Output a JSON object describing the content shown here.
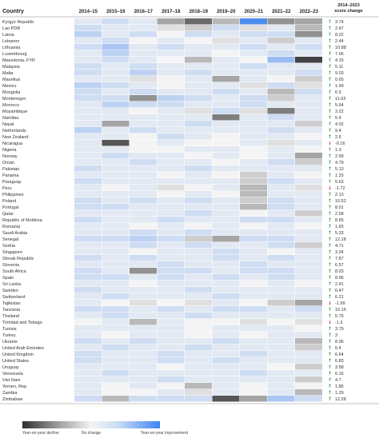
{
  "chart_data": {
    "type": "heatmap",
    "corner_label": "Country",
    "change_header": [
      "2014–2023",
      "score change"
    ],
    "columns": [
      "2014–15",
      "2015–16",
      "2016–17",
      "2017–18",
      "2018–19",
      "2019–20",
      "2020–21",
      "2021–22",
      "2022–23"
    ],
    "value_scale": "year-on-year change: -1 strongest decline, 0 no change, +1 strongest improvement",
    "colors": {
      "decline": "#2f2f2f",
      "neutral": "#f4f4f4",
      "improvement": "#3d82ee",
      "arrow_up": "#2e9e4e",
      "arrow_down": "#d23b3b"
    },
    "legend": {
      "decline": "Year-on-year decline",
      "neutral": "No change",
      "improvement": "Year-on-year improvement"
    },
    "rows": [
      {
        "country": "Kyrgyz Republic",
        "change": "3.74",
        "dir": "up",
        "cells": [
          0.1,
          0.2,
          0.1,
          -0.4,
          -0.7,
          -0.3,
          0.9,
          -0.5,
          -0.4
        ]
      },
      {
        "country": "Lao PDR",
        "change": "2.47",
        "dir": "up",
        "cells": [
          0.2,
          0.1,
          0.1,
          -0.1,
          -0.2,
          0.2,
          -0.1,
          0.1,
          -0.3
        ]
      },
      {
        "country": "Latvia",
        "change": "8.22",
        "dir": "up",
        "cells": [
          0.3,
          0.1,
          0.2,
          0.0,
          0.2,
          0.1,
          0.2,
          0.2,
          -0.5
        ]
      },
      {
        "country": "Lebanon",
        "change": "2.44",
        "dir": "up",
        "cells": [
          0.1,
          0.2,
          0.0,
          0.1,
          0.0,
          -0.1,
          0.1,
          -0.2,
          0.1
        ]
      },
      {
        "country": "Lithuania",
        "change": "10.88",
        "dir": "up",
        "cells": [
          0.2,
          0.4,
          0.1,
          0.2,
          0.1,
          0.1,
          0.2,
          0.1,
          0.2
        ]
      },
      {
        "country": "Luxembourg",
        "change": "7.66",
        "dir": "up",
        "cells": [
          0.1,
          0.3,
          0.1,
          0.1,
          0.1,
          0.0,
          0.1,
          0.2,
          0.1
        ]
      },
      {
        "country": "Macedonia, FYR",
        "change": "4.15",
        "dir": "up",
        "cells": [
          0.1,
          0.2,
          0.1,
          0.0,
          -0.3,
          0.1,
          0.0,
          0.5,
          -0.9
        ]
      },
      {
        "country": "Malaysia",
        "change": "5.11",
        "dir": "up",
        "cells": [
          0.2,
          0.1,
          0.2,
          0.1,
          0.1,
          0.1,
          0.2,
          0.1,
          0.1
        ]
      },
      {
        "country": "Malta",
        "change": "9.03",
        "dir": "up",
        "cells": [
          0.2,
          0.1,
          0.3,
          0.1,
          0.2,
          0.1,
          0.1,
          0.1,
          0.2
        ]
      },
      {
        "country": "Mauritius",
        "change": "0.65",
        "dir": "up",
        "cells": [
          0.1,
          0.1,
          -0.1,
          0.0,
          0.1,
          -0.4,
          0.1,
          0.0,
          -0.2
        ]
      },
      {
        "country": "Mexico",
        "change": "1.99",
        "dir": "up",
        "cells": [
          0.3,
          0.2,
          0.1,
          0.0,
          0.1,
          0.1,
          -0.1,
          0.2,
          -0.1
        ]
      },
      {
        "country": "Mongolia",
        "change": "6.9",
        "dir": "up",
        "cells": [
          0.2,
          0.1,
          0.2,
          0.1,
          0.1,
          0.2,
          0.1,
          -0.3,
          0.2
        ]
      },
      {
        "country": "Montenegro",
        "change": "11.63",
        "dir": "up",
        "cells": [
          0.2,
          0.2,
          -0.5,
          0.3,
          0.2,
          0.1,
          0.2,
          -0.2,
          0.1
        ]
      },
      {
        "country": "Morocco",
        "change": "5.64",
        "dir": "up",
        "cells": [
          0.1,
          0.3,
          0.2,
          0.2,
          0.1,
          0.1,
          0.2,
          0.1,
          0.1
        ]
      },
      {
        "country": "Mozambique",
        "change": "3.22",
        "dir": "up",
        "cells": [
          0.1,
          0.1,
          0.0,
          0.1,
          -0.1,
          0.2,
          -0.1,
          -0.6,
          0.1
        ]
      },
      {
        "country": "Namibia",
        "change": "5.4",
        "dir": "up",
        "cells": [
          0.1,
          0.1,
          0.1,
          0.1,
          0.1,
          -0.6,
          0.1,
          0.2,
          0.1
        ]
      },
      {
        "country": "Nepal",
        "change": "4.02",
        "dir": "up",
        "cells": [
          0.1,
          -0.4,
          0.1,
          0.1,
          0.2,
          0.1,
          0.1,
          0.1,
          -0.2
        ]
      },
      {
        "country": "Netherlands",
        "change": "9.4",
        "dir": "up",
        "cells": [
          0.3,
          0.1,
          0.2,
          0.1,
          0.1,
          0.1,
          0.1,
          0.2,
          0.1
        ]
      },
      {
        "country": "New Zealand",
        "change": "2.6",
        "dir": "up",
        "cells": [
          0.1,
          0.1,
          0.0,
          0.2,
          0.1,
          0.0,
          0.1,
          0.1,
          0.0
        ]
      },
      {
        "country": "Nicaragua",
        "change": "-0.16",
        "dir": "down",
        "cells": [
          0.1,
          -0.8,
          0.0,
          0.1,
          0.0,
          0.0,
          0.1,
          -0.1,
          0.1
        ]
      },
      {
        "country": "Nigeria",
        "change": "1.3",
        "dir": "up",
        "cells": [
          0.1,
          0.1,
          0.0,
          0.0,
          0.1,
          0.1,
          0.0,
          0.1,
          0.0
        ]
      },
      {
        "country": "Norway",
        "change": "2.99",
        "dir": "up",
        "cells": [
          0.1,
          0.2,
          0.1,
          0.1,
          0.0,
          0.1,
          0.0,
          0.1,
          -0.4
        ]
      },
      {
        "country": "Oman",
        "change": "4.79",
        "dir": "up",
        "cells": [
          0.1,
          0.1,
          0.2,
          0.1,
          0.1,
          0.0,
          0.1,
          0.2,
          -0.2
        ]
      },
      {
        "country": "Pakistan",
        "change": "5.13",
        "dir": "up",
        "cells": [
          0.2,
          0.1,
          0.1,
          0.1,
          0.2,
          0.1,
          0.1,
          0.1,
          0.1
        ]
      },
      {
        "country": "Panama",
        "change": "1.33",
        "dir": "up",
        "cells": [
          0.1,
          0.1,
          0.1,
          0.0,
          0.1,
          0.0,
          -0.2,
          0.1,
          0.0
        ]
      },
      {
        "country": "Paraguay",
        "change": "5.63",
        "dir": "up",
        "cells": [
          0.2,
          0.1,
          0.1,
          0.1,
          0.1,
          0.1,
          -0.2,
          0.2,
          0.1
        ]
      },
      {
        "country": "Peru",
        "change": "-1.72",
        "dir": "down",
        "cells": [
          0.1,
          0.0,
          0.1,
          -0.1,
          0.0,
          0.1,
          -0.3,
          0.1,
          -0.1
        ]
      },
      {
        "country": "Philippines",
        "change": "2.13",
        "dir": "up",
        "cells": [
          0.1,
          0.1,
          0.1,
          0.0,
          0.1,
          0.0,
          -0.3,
          0.1,
          0.1
        ]
      },
      {
        "country": "Poland",
        "change": "10.52",
        "dir": "up",
        "cells": [
          0.2,
          0.1,
          0.2,
          0.1,
          0.2,
          0.1,
          -0.2,
          0.2,
          0.1
        ]
      },
      {
        "country": "Portugal",
        "change": "8.01",
        "dir": "up",
        "cells": [
          0.2,
          0.2,
          0.1,
          0.1,
          0.1,
          0.1,
          -0.3,
          0.2,
          0.1
        ]
      },
      {
        "country": "Qatar",
        "change": "2.58",
        "dir": "up",
        "cells": [
          0.1,
          0.1,
          0.1,
          0.1,
          0.2,
          0.1,
          0.0,
          0.1,
          -0.2
        ]
      },
      {
        "country": "Republic of Moldova",
        "change": "8.55",
        "dir": "up",
        "cells": [
          0.2,
          0.1,
          0.1,
          0.2,
          0.1,
          0.1,
          0.2,
          0.2,
          0.1
        ]
      },
      {
        "country": "Romania",
        "change": "1.65",
        "dir": "up",
        "cells": [
          0.1,
          0.1,
          0.0,
          0.1,
          0.0,
          0.1,
          0.0,
          0.1,
          0.0
        ]
      },
      {
        "country": "Saudi Arabia",
        "change": "5.33",
        "dir": "up",
        "cells": [
          0.1,
          0.1,
          0.2,
          0.1,
          0.2,
          0.1,
          0.1,
          0.1,
          0.1
        ]
      },
      {
        "country": "Senegal",
        "change": "12.18",
        "dir": "up",
        "cells": [
          0.2,
          0.2,
          0.3,
          0.2,
          -0.2,
          -0.4,
          0.2,
          0.2,
          0.1
        ]
      },
      {
        "country": "Serbia",
        "change": "4.71",
        "dir": "up",
        "cells": [
          0.1,
          0.1,
          0.2,
          0.1,
          0.2,
          0.1,
          0.1,
          0.2,
          -0.2
        ]
      },
      {
        "country": "Singapore",
        "change": "3.24",
        "dir": "up",
        "cells": [
          0.1,
          0.1,
          0.0,
          0.1,
          0.1,
          0.2,
          0.1,
          0.0,
          0.1
        ]
      },
      {
        "country": "Slovak Republic",
        "change": "7.87",
        "dir": "up",
        "cells": [
          0.2,
          0.1,
          0.2,
          0.1,
          0.1,
          0.2,
          0.1,
          0.2,
          0.1
        ]
      },
      {
        "country": "Slovenia",
        "change": "6.57",
        "dir": "up",
        "cells": [
          0.1,
          0.1,
          0.1,
          0.2,
          0.1,
          0.1,
          0.2,
          0.1,
          0.1
        ]
      },
      {
        "country": "South Africa",
        "change": "8.03",
        "dir": "up",
        "cells": [
          0.2,
          0.1,
          -0.5,
          0.2,
          0.2,
          0.1,
          0.2,
          0.2,
          0.1
        ]
      },
      {
        "country": "Spain",
        "change": "8.96",
        "dir": "up",
        "cells": [
          0.2,
          0.2,
          0.1,
          0.2,
          0.1,
          0.2,
          0.1,
          0.2,
          0.1
        ]
      },
      {
        "country": "Sri Lanka",
        "change": "2.41",
        "dir": "up",
        "cells": [
          0.1,
          0.1,
          0.0,
          0.1,
          0.1,
          0.1,
          0.0,
          0.1,
          0.0
        ]
      },
      {
        "country": "Sweden",
        "change": "6.47",
        "dir": "up",
        "cells": [
          0.2,
          0.1,
          0.1,
          0.1,
          0.2,
          0.1,
          0.1,
          0.1,
          0.1
        ]
      },
      {
        "country": "Switzerland",
        "change": "6.21",
        "dir": "up",
        "cells": [
          0.1,
          0.2,
          0.1,
          0.1,
          0.1,
          0.2,
          0.1,
          0.1,
          0.1
        ]
      },
      {
        "country": "Tajikistan",
        "change": "-1.99",
        "dir": "down",
        "cells": [
          0.1,
          0.0,
          -0.1,
          0.0,
          -0.1,
          0.1,
          0.0,
          -0.2,
          -0.4
        ]
      },
      {
        "country": "Tanzania",
        "change": "10.15",
        "dir": "up",
        "cells": [
          0.2,
          0.2,
          0.1,
          0.2,
          0.1,
          0.2,
          0.2,
          0.1,
          0.2
        ]
      },
      {
        "country": "Thailand",
        "change": "5.75",
        "dir": "up",
        "cells": [
          0.1,
          0.2,
          0.1,
          0.1,
          0.2,
          0.1,
          0.1,
          0.1,
          0.1
        ]
      },
      {
        "country": "Trinidad and Tobago",
        "change": "-1.3",
        "dir": "down",
        "cells": [
          0.0,
          0.1,
          -0.3,
          0.1,
          0.0,
          0.0,
          -0.1,
          0.0,
          -0.1
        ]
      },
      {
        "country": "Tunisia",
        "change": "3.79",
        "dir": "up",
        "cells": [
          0.1,
          0.1,
          0.1,
          0.1,
          0.0,
          0.1,
          0.1,
          0.1,
          0.0
        ]
      },
      {
        "country": "Turkey",
        "change": "3",
        "dir": "up",
        "cells": [
          0.1,
          0.0,
          0.1,
          0.1,
          0.0,
          0.1,
          0.0,
          0.1,
          0.1
        ]
      },
      {
        "country": "Ukraine",
        "change": "8.06",
        "dir": "up",
        "cells": [
          0.2,
          0.1,
          0.2,
          0.1,
          0.1,
          0.2,
          0.1,
          0.1,
          -0.3
        ]
      },
      {
        "country": "United Arab Emirates",
        "change": "6.4",
        "dir": "up",
        "cells": [
          0.1,
          0.2,
          0.1,
          0.1,
          0.2,
          0.1,
          0.1,
          0.1,
          -0.2
        ]
      },
      {
        "country": "United Kingdom",
        "change": "6.64",
        "dir": "up",
        "cells": [
          0.2,
          0.1,
          0.1,
          0.2,
          0.1,
          0.1,
          0.2,
          0.1,
          0.1
        ]
      },
      {
        "country": "United States",
        "change": "6.83",
        "dir": "up",
        "cells": [
          0.2,
          0.1,
          0.1,
          0.2,
          0.1,
          0.2,
          0.1,
          0.1,
          0.1
        ]
      },
      {
        "country": "Uruguay",
        "change": "3.58",
        "dir": "up",
        "cells": [
          0.1,
          0.1,
          0.1,
          0.0,
          0.1,
          0.1,
          0.1,
          0.0,
          -0.2
        ]
      },
      {
        "country": "Venezuela",
        "change": "6.15",
        "dir": "up",
        "cells": [
          0.1,
          0.2,
          0.1,
          0.1,
          0.1,
          0.1,
          0.2,
          0.1,
          0.1
        ]
      },
      {
        "country": "Viet Nam",
        "change": "4.7",
        "dir": "up",
        "cells": [
          0.1,
          0.1,
          0.1,
          0.2,
          0.1,
          0.1,
          0.1,
          0.1,
          -0.2
        ]
      },
      {
        "country": "Yemen, Rep.",
        "change": "1.86",
        "dir": "up",
        "cells": [
          0.1,
          0.0,
          0.1,
          0.0,
          -0.3,
          0.1,
          0.0,
          0.1,
          0.0
        ]
      },
      {
        "country": "Zambia",
        "change": "1.29",
        "dir": "up",
        "cells": [
          0.1,
          0.0,
          0.0,
          0.1,
          -0.1,
          0.1,
          0.0,
          0.1,
          -0.3
        ]
      },
      {
        "country": "Zimbabwe",
        "change": "12.28",
        "dir": "up",
        "cells": [
          0.2,
          -0.3,
          0.2,
          0.2,
          0.2,
          -0.8,
          -0.4,
          0.4,
          0.2
        ]
      }
    ]
  }
}
